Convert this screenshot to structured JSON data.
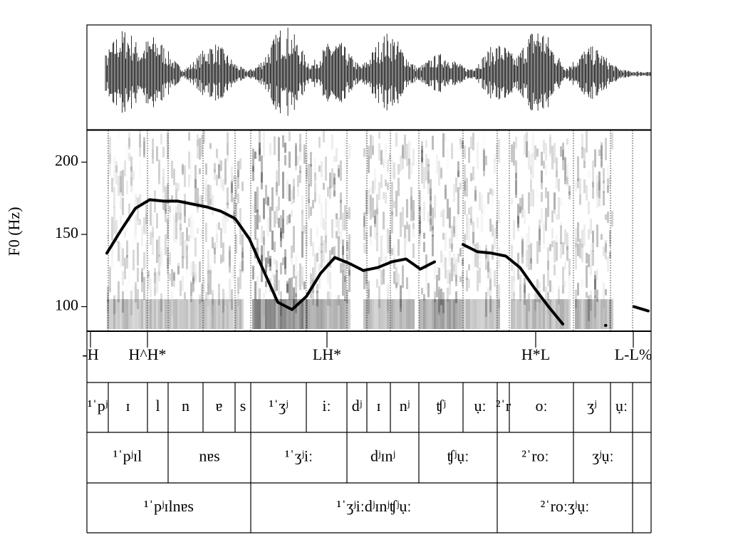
{
  "chart_data": {
    "type": "line",
    "ylabel": "F0 (Hz)",
    "ylim": [
      83,
      222
    ],
    "yticks": [
      100,
      150,
      200
    ],
    "color": "#000000",
    "values": [
      137,
      153,
      168,
      174,
      173,
      173,
      171,
      169,
      166,
      161,
      147,
      125,
      103,
      98,
      107,
      123,
      134,
      130,
      125,
      127,
      131,
      133,
      126,
      131,
      null,
      143,
      138,
      137,
      135,
      127,
      113,
      100,
      88,
      null,
      null,
      87,
      null,
      100,
      97
    ]
  },
  "tiers": {
    "tones": [
      "-H",
      "H^H*",
      "LH*",
      "H*L",
      "L-L%"
    ],
    "segments": [
      "¹ˈpʲ",
      "ɪ",
      "l",
      "n",
      "ɐ",
      "s",
      "¹ˈʒʲ",
      "iː",
      "dʲ",
      "ɪ",
      "nʲ",
      "ʧʲ",
      "ụː",
      "²ˈr",
      "oː",
      "ʒʲ",
      "ụː"
    ],
    "syllables": [
      "¹ˈpʲɪl",
      "nɐs",
      "¹ˈʒʲiː",
      "dʲɪnʲ",
      "ʧʲụː",
      "²ˈroː",
      "ʒʲụː"
    ],
    "words": [
      "¹ˈpʲɪlnɐs",
      "¹ˈʒʲiːdʲɪnʲʧʲụː",
      "²ˈroːʒʲụː"
    ]
  }
}
